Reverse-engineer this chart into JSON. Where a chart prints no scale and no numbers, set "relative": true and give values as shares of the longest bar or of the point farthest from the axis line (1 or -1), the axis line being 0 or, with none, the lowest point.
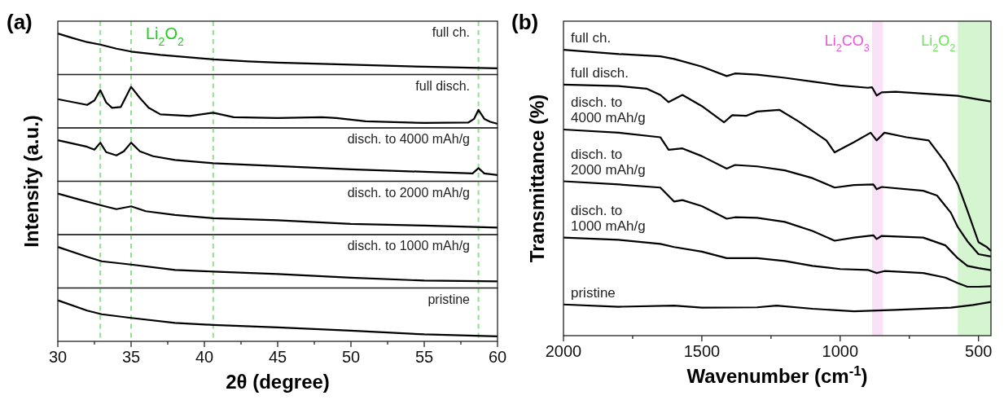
{
  "chart_data": [
    {
      "type": "line",
      "title": "(a)",
      "relative": true,
      "xlim": [
        30,
        60
      ],
      "tick_labels": false,
      "annotations": [
        "Li$_{2}$O$_{2}$"
      ],
      "ref_lines": [
        {
          "axis": "x",
          "value": 32.9,
          "color": "#90e090",
          "line_style": "dashed"
        },
        {
          "axis": "x",
          "value": 35,
          "color": "#90e090",
          "line_style": "dashed"
        },
        {
          "axis": "x",
          "value": 40.6,
          "color": "#90e090",
          "line_style": "dashed"
        },
        {
          "axis": "x",
          "value": 58.7,
          "color": "#90e090",
          "line_style": "dashed"
        }
      ],
      "x": [
        30,
        31,
        32,
        32.9,
        34,
        35,
        37,
        40.6,
        43,
        45,
        50,
        55,
        60
      ],
      "series": [
        {
          "name": "full ch.",
          "color": "#000000",
          "values": [
            1,
            0.89,
            0.79,
            0.73,
            0.63,
            0.56,
            0.48,
            0.37,
            0.32,
            0.29,
            0.24,
            0.19,
            0.15
          ]
        }
      ]
    },
    {
      "type": "line",
      "relative": true,
      "xlim": [
        30,
        60
      ],
      "tick_labels": false,
      "ref_lines": [
        {
          "axis": "x",
          "value": 32.9,
          "color": "#90e090",
          "line_style": "dashed"
        },
        {
          "axis": "x",
          "value": 35,
          "color": "#90e090",
          "line_style": "dashed"
        },
        {
          "axis": "x",
          "value": 40.6,
          "color": "#90e090",
          "line_style": "dashed"
        },
        {
          "axis": "x",
          "value": 58.7,
          "color": "#90e090",
          "line_style": "dashed"
        }
      ],
      "x": [
        30,
        32,
        32.5,
        32.9,
        33.3,
        33.7,
        34.3,
        35,
        35.6,
        36.2,
        37,
        39,
        40.6,
        42,
        45,
        48,
        49,
        51,
        55,
        58,
        58.4,
        58.7,
        59.1,
        59.5,
        60
      ],
      "series": [
        {
          "name": "full disch.",
          "color": "#000000",
          "values": [
            0.7,
            0.56,
            0.67,
            0.92,
            0.62,
            0.49,
            0.51,
            1,
            0.73,
            0.49,
            0.33,
            0.29,
            0.37,
            0.26,
            0.24,
            0.26,
            0.24,
            0.16,
            0.12,
            0.13,
            0.22,
            0.44,
            0.22,
            0.15,
            0.1
          ]
        }
      ]
    },
    {
      "type": "line",
      "relative": true,
      "xlim": [
        30,
        60
      ],
      "tick_labels": false,
      "ylabel": "Intensity (a.u.)",
      "ref_lines": [
        {
          "axis": "x",
          "value": 32.9,
          "color": "#90e090",
          "line_style": "dashed"
        },
        {
          "axis": "x",
          "value": 35,
          "color": "#90e090",
          "line_style": "dashed"
        },
        {
          "axis": "x",
          "value": 40.6,
          "color": "#90e090",
          "line_style": "dashed"
        },
        {
          "axis": "x",
          "value": 58.7,
          "color": "#90e090",
          "line_style": "dashed"
        }
      ],
      "x": [
        30,
        32,
        32.5,
        32.9,
        33.3,
        34,
        34.5,
        35,
        35.6,
        36.5,
        38,
        40.6,
        45,
        50,
        55,
        58.3,
        58.7,
        59.1,
        60
      ],
      "series": [
        {
          "name": "disch. to 4000 mAh/g",
          "color": "#000000",
          "values": [
            1,
            0.84,
            0.77,
            0.94,
            0.71,
            0.63,
            0.73,
            0.94,
            0.73,
            0.61,
            0.52,
            0.44,
            0.37,
            0.29,
            0.23,
            0.19,
            0.32,
            0.19,
            0.15
          ]
        }
      ]
    },
    {
      "type": "line",
      "relative": true,
      "xlim": [
        30,
        60
      ],
      "tick_labels": false,
      "ref_lines": [
        {
          "axis": "x",
          "value": 32.9,
          "color": "#90e090",
          "line_style": "dashed"
        },
        {
          "axis": "x",
          "value": 35,
          "color": "#90e090",
          "line_style": "dashed"
        },
        {
          "axis": "x",
          "value": 40.6,
          "color": "#90e090",
          "line_style": "dashed"
        },
        {
          "axis": "x",
          "value": 58.7,
          "color": "#90e090",
          "line_style": "dashed"
        }
      ],
      "x": [
        30,
        31.5,
        33,
        34,
        35,
        36,
        38,
        40.6,
        45,
        50,
        55,
        60
      ],
      "series": [
        {
          "name": "disch. to 2000 mAh/g",
          "color": "#000000",
          "values": [
            1,
            0.85,
            0.71,
            0.62,
            0.69,
            0.57,
            0.48,
            0.4,
            0.35,
            0.26,
            0.22,
            0.17
          ]
        }
      ]
    },
    {
      "type": "line",
      "relative": true,
      "xlim": [
        30,
        60
      ],
      "tick_labels": false,
      "ref_lines": [
        {
          "axis": "x",
          "value": 32.9,
          "color": "#90e090",
          "line_style": "dashed"
        },
        {
          "axis": "x",
          "value": 35,
          "color": "#90e090",
          "line_style": "dashed"
        },
        {
          "axis": "x",
          "value": 40.6,
          "color": "#90e090",
          "line_style": "dashed"
        },
        {
          "axis": "x",
          "value": 58.7,
          "color": "#90e090",
          "line_style": "dashed"
        }
      ],
      "x": [
        30,
        32,
        33,
        35,
        38,
        40.6,
        45,
        50,
        55,
        60
      ],
      "series": [
        {
          "name": "disch. to 1000 mAh/g",
          "color": "#000000",
          "values": [
            1,
            0.76,
            0.65,
            0.57,
            0.44,
            0.4,
            0.34,
            0.25,
            0.18,
            0.16
          ]
        }
      ]
    },
    {
      "type": "line",
      "relative": true,
      "xlim": [
        30,
        60
      ],
      "tick_labels": "x",
      "xlabel": "2θ (degree)",
      "xticks": [
        30,
        {
          "value": 32.5,
          "label": null
        },
        35,
        {
          "value": 37.5,
          "label": null
        },
        40,
        {
          "value": 42.5,
          "label": null
        },
        45,
        {
          "value": 47.5,
          "label": null
        },
        50,
        {
          "value": 52.5,
          "label": null
        },
        55,
        {
          "value": 57.5,
          "label": null
        },
        60
      ],
      "ref_lines": [
        {
          "axis": "x",
          "value": 32.9,
          "color": "#90e090",
          "line_style": "dashed"
        },
        {
          "axis": "x",
          "value": 35,
          "color": "#90e090",
          "line_style": "dashed"
        },
        {
          "axis": "x",
          "value": 40.6,
          "color": "#90e090",
          "line_style": "dashed"
        },
        {
          "axis": "x",
          "value": 58.7,
          "color": "#90e090",
          "line_style": "dashed"
        }
      ],
      "x": [
        30,
        32,
        33,
        35,
        38,
        40.6,
        45,
        50,
        55,
        60
      ],
      "series": [
        {
          "name": "pristine",
          "color": "#000000",
          "values": [
            1,
            0.75,
            0.66,
            0.57,
            0.45,
            0.4,
            0.34,
            0.26,
            0.17,
            0.12
          ]
        }
      ]
    },
    {
      "type": "line",
      "title": "(b)",
      "relative": true,
      "xlabel": "Wavenumber (cm$^{-1}$)",
      "ylabel": "Transmittance (%)",
      "xlim": [
        2000,
        455
      ],
      "tick_labels": "x",
      "xticks": [
        2000,
        {
          "value": 1750,
          "label": null
        },
        1500,
        {
          "value": 1250,
          "label": null
        },
        1000,
        {
          "value": 750,
          "label": null
        },
        500
      ],
      "bands": [
        {
          "axis": "x",
          "from": 885,
          "to": 845,
          "label": "Li$_{2}$CO$_{3}$",
          "color": "#f9e1f7"
        },
        {
          "axis": "x",
          "from": 575,
          "to": 455,
          "label": "Li$_{2}$O$_{2}$",
          "color": "#d5f5d0"
        }
      ],
      "series": [
        {
          "name": "full ch.",
          "color": "#000000",
          "x": [
            2000,
            1800,
            1650,
            1600,
            1500,
            1410,
            1380,
            1300,
            1200,
            1100,
            1000,
            900,
            885,
            868,
            850,
            800,
            700,
            575,
            500,
            455
          ],
          "values": [
            1,
            0.985,
            0.977,
            0.968,
            0.941,
            0.908,
            0.917,
            0.913,
            0.902,
            0.889,
            0.875,
            0.867,
            0.869,
            0.84,
            0.851,
            0.853,
            0.847,
            0.839,
            0.826,
            0.819
          ]
        },
        {
          "name": "full disch.",
          "color": "#000000",
          "x": [
            2000,
            1800,
            1700,
            1650,
            1620,
            1570,
            1500,
            1420,
            1390,
            1340,
            1300,
            1220,
            1150,
            1050,
            1020,
            950,
            890,
            868,
            840,
            760,
            680,
            620,
            575,
            540,
            500,
            470,
            455
          ],
          "values": [
            0.878,
            0.873,
            0.864,
            0.842,
            0.817,
            0.842,
            0.803,
            0.746,
            0.771,
            0.769,
            0.784,
            0.79,
            0.749,
            0.683,
            0.641,
            0.677,
            0.71,
            0.683,
            0.71,
            0.694,
            0.683,
            0.606,
            0.53,
            0.437,
            0.327,
            0.31,
            0.296
          ]
        },
        {
          "name": "disch. to 4000 mAh/g",
          "color": "#000000",
          "x": [
            2000,
            1800,
            1650,
            1620,
            1570,
            1500,
            1410,
            1380,
            1300,
            1200,
            1100,
            1020,
            950,
            880,
            868,
            850,
            700,
            650,
            600,
            575,
            540,
            500,
            455
          ],
          "values": [
            0.721,
            0.71,
            0.694,
            0.65,
            0.655,
            0.628,
            0.584,
            0.597,
            0.592,
            0.578,
            0.551,
            0.518,
            0.527,
            0.529,
            0.512,
            0.52,
            0.507,
            0.49,
            0.43,
            0.38,
            0.33,
            0.285,
            0.277
          ]
        },
        {
          "name": "disch. to 2000 mAh/g",
          "color": "#000000",
          "x": [
            2000,
            1800,
            1650,
            1600,
            1570,
            1500,
            1410,
            1380,
            1300,
            1200,
            1100,
            1020,
            950,
            880,
            868,
            850,
            700,
            620,
            575,
            540,
            500,
            455
          ],
          "values": [
            0.54,
            0.529,
            0.518,
            0.469,
            0.474,
            0.453,
            0.409,
            0.414,
            0.412,
            0.398,
            0.366,
            0.332,
            0.343,
            0.351,
            0.338,
            0.349,
            0.343,
            0.316,
            0.271,
            0.244,
            0.236,
            0.229
          ]
        },
        {
          "name": "disch. to 1000 mAh/g",
          "color": "#000000",
          "x": [
            2000,
            1800,
            1650,
            1600,
            1500,
            1410,
            1300,
            1200,
            1100,
            1000,
            900,
            868,
            840,
            700,
            620,
            575,
            540,
            500,
            455
          ],
          "values": [
            0.343,
            0.335,
            0.321,
            0.31,
            0.294,
            0.271,
            0.271,
            0.261,
            0.244,
            0.233,
            0.23,
            0.219,
            0.226,
            0.219,
            0.203,
            0.184,
            0.171,
            0.171,
            0.173
          ]
        },
        {
          "name": "pristine",
          "color": "#000000",
          "x": [
            2000,
            1800,
            1600,
            1500,
            1300,
            1230,
            1100,
            950,
            800,
            600,
            520,
            455
          ],
          "values": [
            0.109,
            0.101,
            0.105,
            0.098,
            0.099,
            0.105,
            0.094,
            0.085,
            0.09,
            0.098,
            0.107,
            0.118
          ]
        }
      ]
    }
  ]
}
